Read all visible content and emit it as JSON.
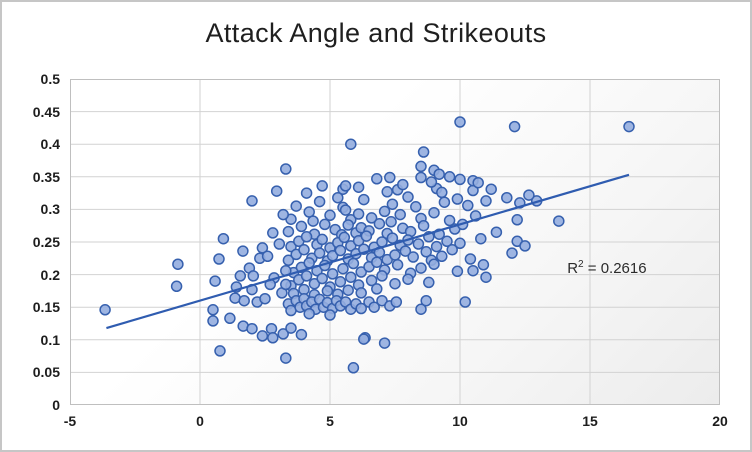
{
  "chart_data": {
    "type": "scatter",
    "title": "Attack Angle and Strikeouts",
    "xlabel": "",
    "ylabel": "",
    "xlim": [
      -5,
      20
    ],
    "ylim": [
      0,
      0.5
    ],
    "grid": true,
    "legend": "none",
    "x_ticks": [
      {
        "v": -5,
        "label": "-5"
      },
      {
        "v": 0,
        "label": "0"
      },
      {
        "v": 5,
        "label": "5"
      },
      {
        "v": 10,
        "label": "10"
      },
      {
        "v": 15,
        "label": "15"
      },
      {
        "v": 20,
        "label": "20"
      }
    ],
    "y_ticks": [
      {
        "v": 0,
        "label": "0"
      },
      {
        "v": 0.05,
        "label": "0.05"
      },
      {
        "v": 0.1,
        "label": "0.1"
      },
      {
        "v": 0.15,
        "label": "0.15"
      },
      {
        "v": 0.2,
        "label": "0.2"
      },
      {
        "v": 0.25,
        "label": "0.25"
      },
      {
        "v": 0.3,
        "label": "0.3"
      },
      {
        "v": 0.35,
        "label": "0.35"
      },
      {
        "v": 0.4,
        "label": "0.4"
      },
      {
        "v": 0.45,
        "label": "0.45"
      },
      {
        "v": 0.5,
        "label": "0.5"
      }
    ],
    "annotation": {
      "base": "R",
      "sup": "2",
      "rest": " = 0.2616",
      "x": 15.65,
      "y": 0.21
    },
    "trendline": {
      "x1": -3.6,
      "y1": 0.118,
      "x2": 16.5,
      "y2": 0.353
    },
    "marker": {
      "fill": "#93ADDF",
      "stroke": "#3660AE",
      "radius": 5,
      "stroke_width": 1.5,
      "fill_opacity": 0.9
    },
    "colors": {
      "trendline": "#2F5CB0",
      "gridline": "#D2D2D2",
      "plot_border": "#BFBFBF",
      "canvas_border": "#C6C6C6",
      "title": "#1F1F1F",
      "tick_label": "#1D1D1D"
    },
    "points": [
      [
        5.5,
        0.331
      ],
      [
        7.2,
        0.327
      ],
      [
        7.6,
        0.33
      ],
      [
        9.1,
        0.332
      ],
      [
        9.3,
        0.326
      ],
      [
        10.5,
        0.329
      ],
      [
        11.2,
        0.331
      ],
      [
        4.1,
        0.325
      ],
      [
        3.7,
        0.305
      ],
      [
        4.6,
        0.312
      ],
      [
        5.3,
        0.318
      ],
      [
        5.5,
        0.303
      ],
      [
        6.3,
        0.315
      ],
      [
        7.4,
        0.308
      ],
      [
        8.0,
        0.319
      ],
      [
        8.3,
        0.304
      ],
      [
        9.4,
        0.311
      ],
      [
        9.9,
        0.316
      ],
      [
        10.3,
        0.306
      ],
      [
        11.0,
        0.313
      ],
      [
        3.5,
        0.285
      ],
      [
        4.2,
        0.296
      ],
      [
        4.35,
        0.282
      ],
      [
        5.0,
        0.291
      ],
      [
        5.6,
        0.299
      ],
      [
        5.8,
        0.284
      ],
      [
        6.1,
        0.293
      ],
      [
        6.6,
        0.287
      ],
      [
        7.1,
        0.297
      ],
      [
        7.35,
        0.281
      ],
      [
        7.7,
        0.292
      ],
      [
        8.5,
        0.286
      ],
      [
        9.0,
        0.295
      ],
      [
        9.6,
        0.283
      ],
      [
        10.6,
        0.29
      ],
      [
        3.4,
        0.266
      ],
      [
        3.9,
        0.274
      ],
      [
        4.4,
        0.262
      ],
      [
        4.8,
        0.277
      ],
      [
        5.2,
        0.269
      ],
      [
        5.45,
        0.261
      ],
      [
        5.7,
        0.276
      ],
      [
        6.0,
        0.264
      ],
      [
        6.2,
        0.272
      ],
      [
        6.5,
        0.267
      ],
      [
        6.9,
        0.278
      ],
      [
        7.2,
        0.263
      ],
      [
        7.8,
        0.271
      ],
      [
        8.1,
        0.266
      ],
      [
        8.6,
        0.275
      ],
      [
        9.2,
        0.262
      ],
      [
        9.8,
        0.27
      ],
      [
        10.1,
        0.277
      ],
      [
        11.4,
        0.265
      ],
      [
        3.5,
        0.243
      ],
      [
        3.8,
        0.251
      ],
      [
        4.1,
        0.258
      ],
      [
        4.5,
        0.246
      ],
      [
        4.7,
        0.254
      ],
      [
        5.0,
        0.241
      ],
      [
        5.3,
        0.249
      ],
      [
        5.55,
        0.257
      ],
      [
        5.8,
        0.244
      ],
      [
        6.1,
        0.252
      ],
      [
        6.4,
        0.259
      ],
      [
        6.7,
        0.242
      ],
      [
        7.0,
        0.25
      ],
      [
        7.4,
        0.256
      ],
      [
        7.7,
        0.245
      ],
      [
        8.0,
        0.253
      ],
      [
        8.4,
        0.247
      ],
      [
        8.8,
        0.258
      ],
      [
        9.1,
        0.243
      ],
      [
        9.5,
        0.251
      ],
      [
        10.0,
        0.248
      ],
      [
        10.8,
        0.255
      ],
      [
        3.4,
        0.222
      ],
      [
        3.7,
        0.231
      ],
      [
        4.0,
        0.238
      ],
      [
        4.3,
        0.225
      ],
      [
        4.6,
        0.233
      ],
      [
        4.9,
        0.221
      ],
      [
        5.1,
        0.229
      ],
      [
        5.4,
        0.237
      ],
      [
        5.7,
        0.224
      ],
      [
        6.0,
        0.232
      ],
      [
        6.3,
        0.239
      ],
      [
        6.6,
        0.226
      ],
      [
        6.9,
        0.234
      ],
      [
        7.2,
        0.223
      ],
      [
        7.5,
        0.23
      ],
      [
        7.9,
        0.236
      ],
      [
        8.2,
        0.227
      ],
      [
        8.7,
        0.235
      ],
      [
        8.9,
        0.222
      ],
      [
        9.3,
        0.228
      ],
      [
        9.7,
        0.238
      ],
      [
        10.4,
        0.224
      ],
      [
        3.6,
        0.203
      ],
      [
        3.9,
        0.211
      ],
      [
        4.2,
        0.218
      ],
      [
        4.5,
        0.206
      ],
      [
        4.8,
        0.214
      ],
      [
        5.1,
        0.201
      ],
      [
        5.5,
        0.209
      ],
      [
        5.9,
        0.217
      ],
      [
        6.2,
        0.204
      ],
      [
        6.5,
        0.212
      ],
      [
        6.8,
        0.219
      ],
      [
        7.1,
        0.207
      ],
      [
        7.6,
        0.215
      ],
      [
        8.1,
        0.202
      ],
      [
        8.5,
        0.21
      ],
      [
        9.0,
        0.216
      ],
      [
        9.9,
        0.205
      ],
      [
        10.5,
        0.206
      ],
      [
        10.9,
        0.215
      ],
      [
        3.5,
        0.183
      ],
      [
        3.8,
        0.192
      ],
      [
        4.1,
        0.198
      ],
      [
        4.4,
        0.186
      ],
      [
        4.7,
        0.194
      ],
      [
        5.0,
        0.181
      ],
      [
        5.4,
        0.189
      ],
      [
        5.8,
        0.196
      ],
      [
        6.1,
        0.184
      ],
      [
        6.6,
        0.191
      ],
      [
        7.0,
        0.198
      ],
      [
        7.5,
        0.186
      ],
      [
        8.0,
        0.193
      ],
      [
        8.8,
        0.188
      ],
      [
        11.0,
        0.196
      ],
      [
        3.6,
        0.171
      ],
      [
        4.0,
        0.177
      ],
      [
        4.4,
        0.169
      ],
      [
        4.9,
        0.175
      ],
      [
        5.3,
        0.17
      ],
      [
        5.7,
        0.176
      ],
      [
        6.2,
        0.172
      ],
      [
        6.8,
        0.178
      ],
      [
        2.0,
        0.313
      ],
      [
        2.95,
        0.328
      ],
      [
        0.9,
        0.255
      ],
      [
        0.73,
        0.224
      ],
      [
        -0.85,
        0.216
      ],
      [
        1.65,
        0.236
      ],
      [
        2.4,
        0.241
      ],
      [
        2.3,
        0.225
      ],
      [
        2.6,
        0.228
      ],
      [
        -0.9,
        0.182
      ],
      [
        0.58,
        0.19
      ],
      [
        1.9,
        0.21
      ],
      [
        1.55,
        0.198
      ],
      [
        2.05,
        0.198
      ],
      [
        1.4,
        0.181
      ],
      [
        2.0,
        0.177
      ],
      [
        2.8,
        0.264
      ],
      [
        3.05,
        0.247
      ],
      [
        3.2,
        0.292
      ],
      [
        3.3,
        0.206
      ],
      [
        2.85,
        0.195
      ],
      [
        3.15,
        0.172
      ],
      [
        3.3,
        0.185
      ],
      [
        2.7,
        0.185
      ],
      [
        11.8,
        0.318
      ],
      [
        12.3,
        0.31
      ],
      [
        12.95,
        0.313
      ],
      [
        12.65,
        0.322
      ],
      [
        12.2,
        0.284
      ],
      [
        13.8,
        0.282
      ],
      [
        12.2,
        0.251
      ],
      [
        12.5,
        0.244
      ],
      [
        12.0,
        0.233
      ],
      [
        10.0,
        0.434
      ],
      [
        5.8,
        0.4
      ],
      [
        8.6,
        0.388
      ],
      [
        3.3,
        0.362
      ],
      [
        8.5,
        0.366
      ],
      [
        9.0,
        0.36
      ],
      [
        8.5,
        0.349
      ],
      [
        8.9,
        0.342
      ],
      [
        9.2,
        0.354
      ],
      [
        9.6,
        0.35
      ],
      [
        10.0,
        0.346
      ],
      [
        10.5,
        0.344
      ],
      [
        10.7,
        0.341
      ],
      [
        6.8,
        0.347
      ],
      [
        7.3,
        0.349
      ],
      [
        4.7,
        0.336
      ],
      [
        6.1,
        0.334
      ],
      [
        7.8,
        0.338
      ],
      [
        5.6,
        0.336
      ],
      [
        12.1,
        0.427
      ],
      [
        16.5,
        0.427
      ],
      [
        -3.65,
        0.146
      ],
      [
        0.5,
        0.146
      ],
      [
        0.5,
        0.129
      ],
      [
        1.15,
        0.133
      ],
      [
        1.66,
        0.121
      ],
      [
        2.0,
        0.117
      ],
      [
        2.4,
        0.106
      ],
      [
        2.75,
        0.117
      ],
      [
        2.8,
        0.103
      ],
      [
        3.2,
        0.109
      ],
      [
        0.77,
        0.083
      ],
      [
        1.35,
        0.164
      ],
      [
        1.7,
        0.16
      ],
      [
        2.2,
        0.158
      ],
      [
        2.5,
        0.163
      ],
      [
        3.4,
        0.155
      ],
      [
        3.5,
        0.145
      ],
      [
        3.7,
        0.16
      ],
      [
        3.85,
        0.15
      ],
      [
        4.0,
        0.163
      ],
      [
        4.1,
        0.152
      ],
      [
        4.3,
        0.158
      ],
      [
        4.45,
        0.147
      ],
      [
        4.6,
        0.162
      ],
      [
        4.75,
        0.15
      ],
      [
        4.9,
        0.157
      ],
      [
        5.1,
        0.148
      ],
      [
        5.25,
        0.16
      ],
      [
        5.4,
        0.152
      ],
      [
        5.6,
        0.158
      ],
      [
        5.8,
        0.147
      ],
      [
        6.0,
        0.155
      ],
      [
        6.2,
        0.148
      ],
      [
        6.5,
        0.158
      ],
      [
        6.7,
        0.15
      ],
      [
        7.0,
        0.16
      ],
      [
        7.3,
        0.152
      ],
      [
        7.55,
        0.158
      ],
      [
        8.5,
        0.147
      ],
      [
        8.7,
        0.16
      ],
      [
        10.2,
        0.158
      ],
      [
        4.2,
        0.14
      ],
      [
        5.0,
        0.138
      ],
      [
        3.5,
        0.118
      ],
      [
        3.9,
        0.108
      ],
      [
        6.35,
        0.103
      ],
      [
        7.1,
        0.095
      ],
      [
        5.9,
        0.057
      ],
      [
        3.3,
        0.072
      ],
      [
        6.3,
        0.101
      ]
    ]
  }
}
